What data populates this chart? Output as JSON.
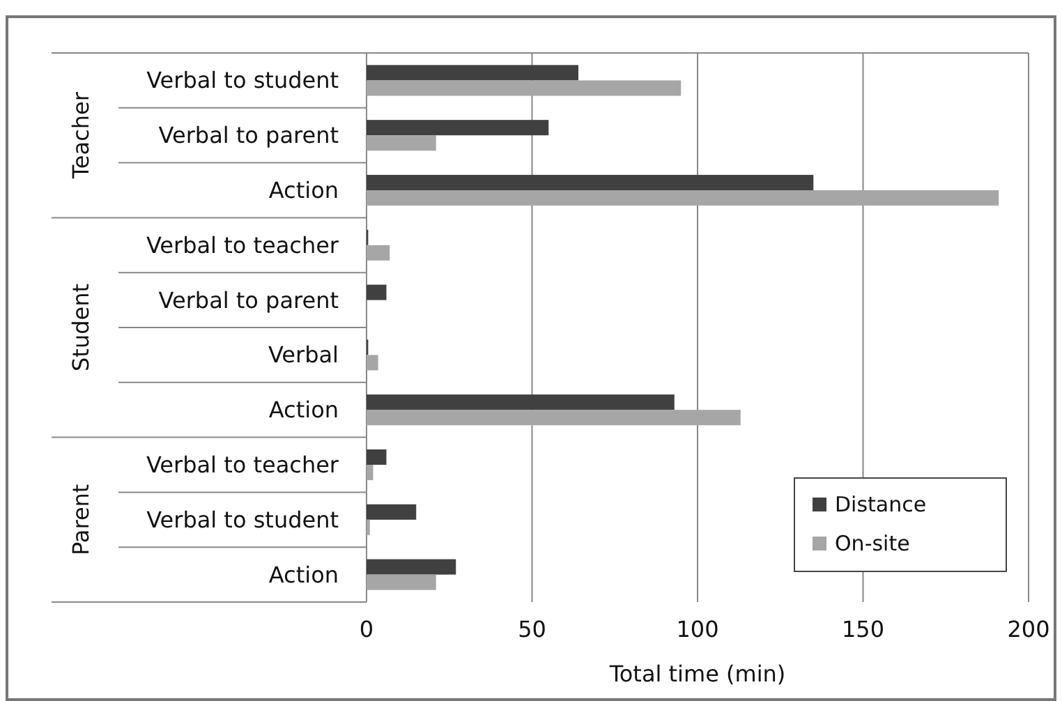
{
  "chart_data": {
    "type": "bar",
    "orientation": "horizontal",
    "xlabel": "Total time (min)",
    "categories": [
      "Verbal to student",
      "Verbal to parent",
      "Action",
      "Verbal to teacher",
      "Verbal to parent",
      "Verbal",
      "Action",
      "Verbal to teacher",
      "Verbal to student",
      "Action"
    ],
    "series": [
      {
        "name": "Distance",
        "color": "#404040",
        "values": [
          64,
          55,
          135,
          0.5,
          6,
          0.5,
          93,
          6,
          15,
          27
        ]
      },
      {
        "name": "On-site",
        "color": "#a6a6a6",
        "values": [
          95,
          21,
          191,
          7,
          0,
          3.5,
          113,
          2,
          1,
          21
        ]
      }
    ],
    "xlim": [
      0,
      200
    ],
    "xticks": [
      0,
      50,
      100,
      150,
      200
    ],
    "grid": "x",
    "legend": "bottom right",
    "annotations": [
      "Teacher",
      "Student",
      "Parent"
    ]
  }
}
